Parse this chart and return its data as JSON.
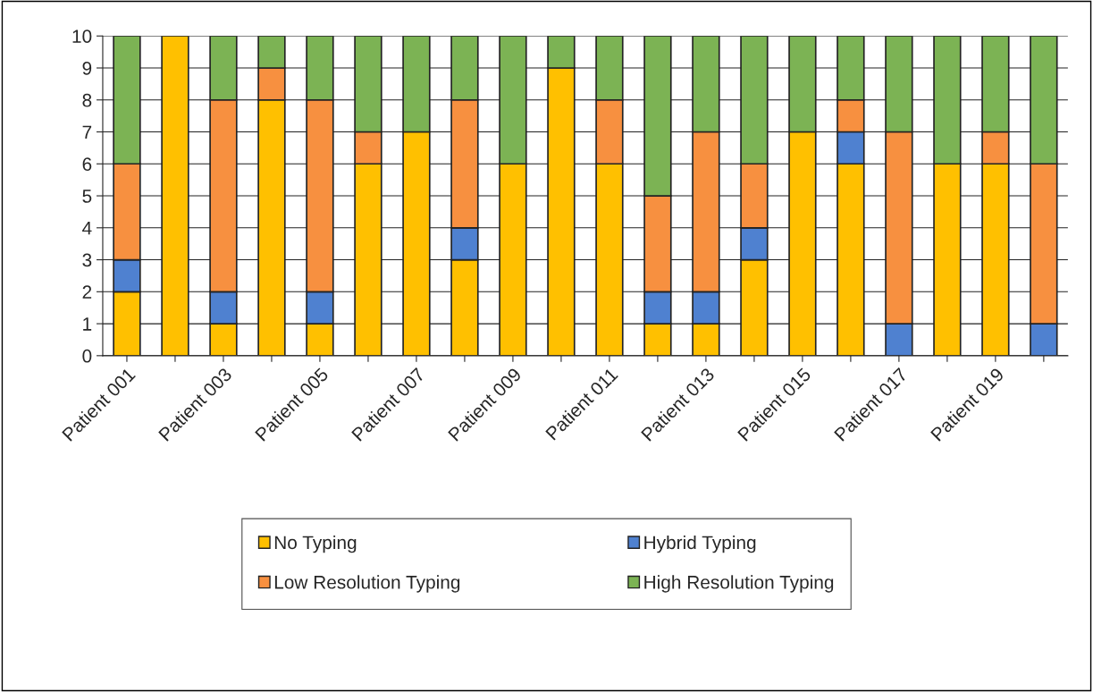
{
  "chart_data": {
    "type": "bar",
    "stacked": true,
    "grid": "y",
    "legend": "bottom",
    "categories": [
      "Patient 001",
      null,
      "Patient 003",
      null,
      "Patient 005",
      null,
      "Patient 007",
      null,
      "Patient 009",
      null,
      "Patient 011",
      null,
      "Patient 013",
      null,
      "Patient 015",
      null,
      "Patient 017",
      null,
      "Patient 019",
      null
    ],
    "ylim": [
      0,
      10
    ],
    "yticks": [
      0,
      1,
      2,
      3,
      4,
      5,
      6,
      7,
      8,
      9,
      10
    ],
    "series": [
      {
        "name": "No Typing",
        "color": "#ffc000",
        "values": [
          2,
          10,
          1,
          8,
          1,
          6,
          7,
          3,
          6,
          9,
          6,
          1,
          1,
          3,
          7,
          6,
          0,
          6,
          6,
          0
        ]
      },
      {
        "name": "Hybrid Typing",
        "color": "#4f81d0",
        "values": [
          1,
          0,
          1,
          0,
          1,
          0,
          0,
          1,
          0,
          0,
          0,
          1,
          1,
          1,
          0,
          1,
          1,
          0,
          0,
          1
        ]
      },
      {
        "name": "Low Resolution Typing",
        "color": "#f79040",
        "values": [
          3,
          0,
          6,
          1,
          6,
          1,
          0,
          4,
          0,
          0,
          2,
          3,
          5,
          2,
          0,
          1,
          6,
          0,
          1,
          5
        ]
      },
      {
        "name": "High Resolution Typing",
        "color": "#7cb354",
        "values": [
          4,
          0,
          2,
          1,
          2,
          3,
          3,
          2,
          4,
          1,
          2,
          5,
          3,
          4,
          3,
          2,
          3,
          4,
          3,
          4
        ]
      }
    ]
  }
}
